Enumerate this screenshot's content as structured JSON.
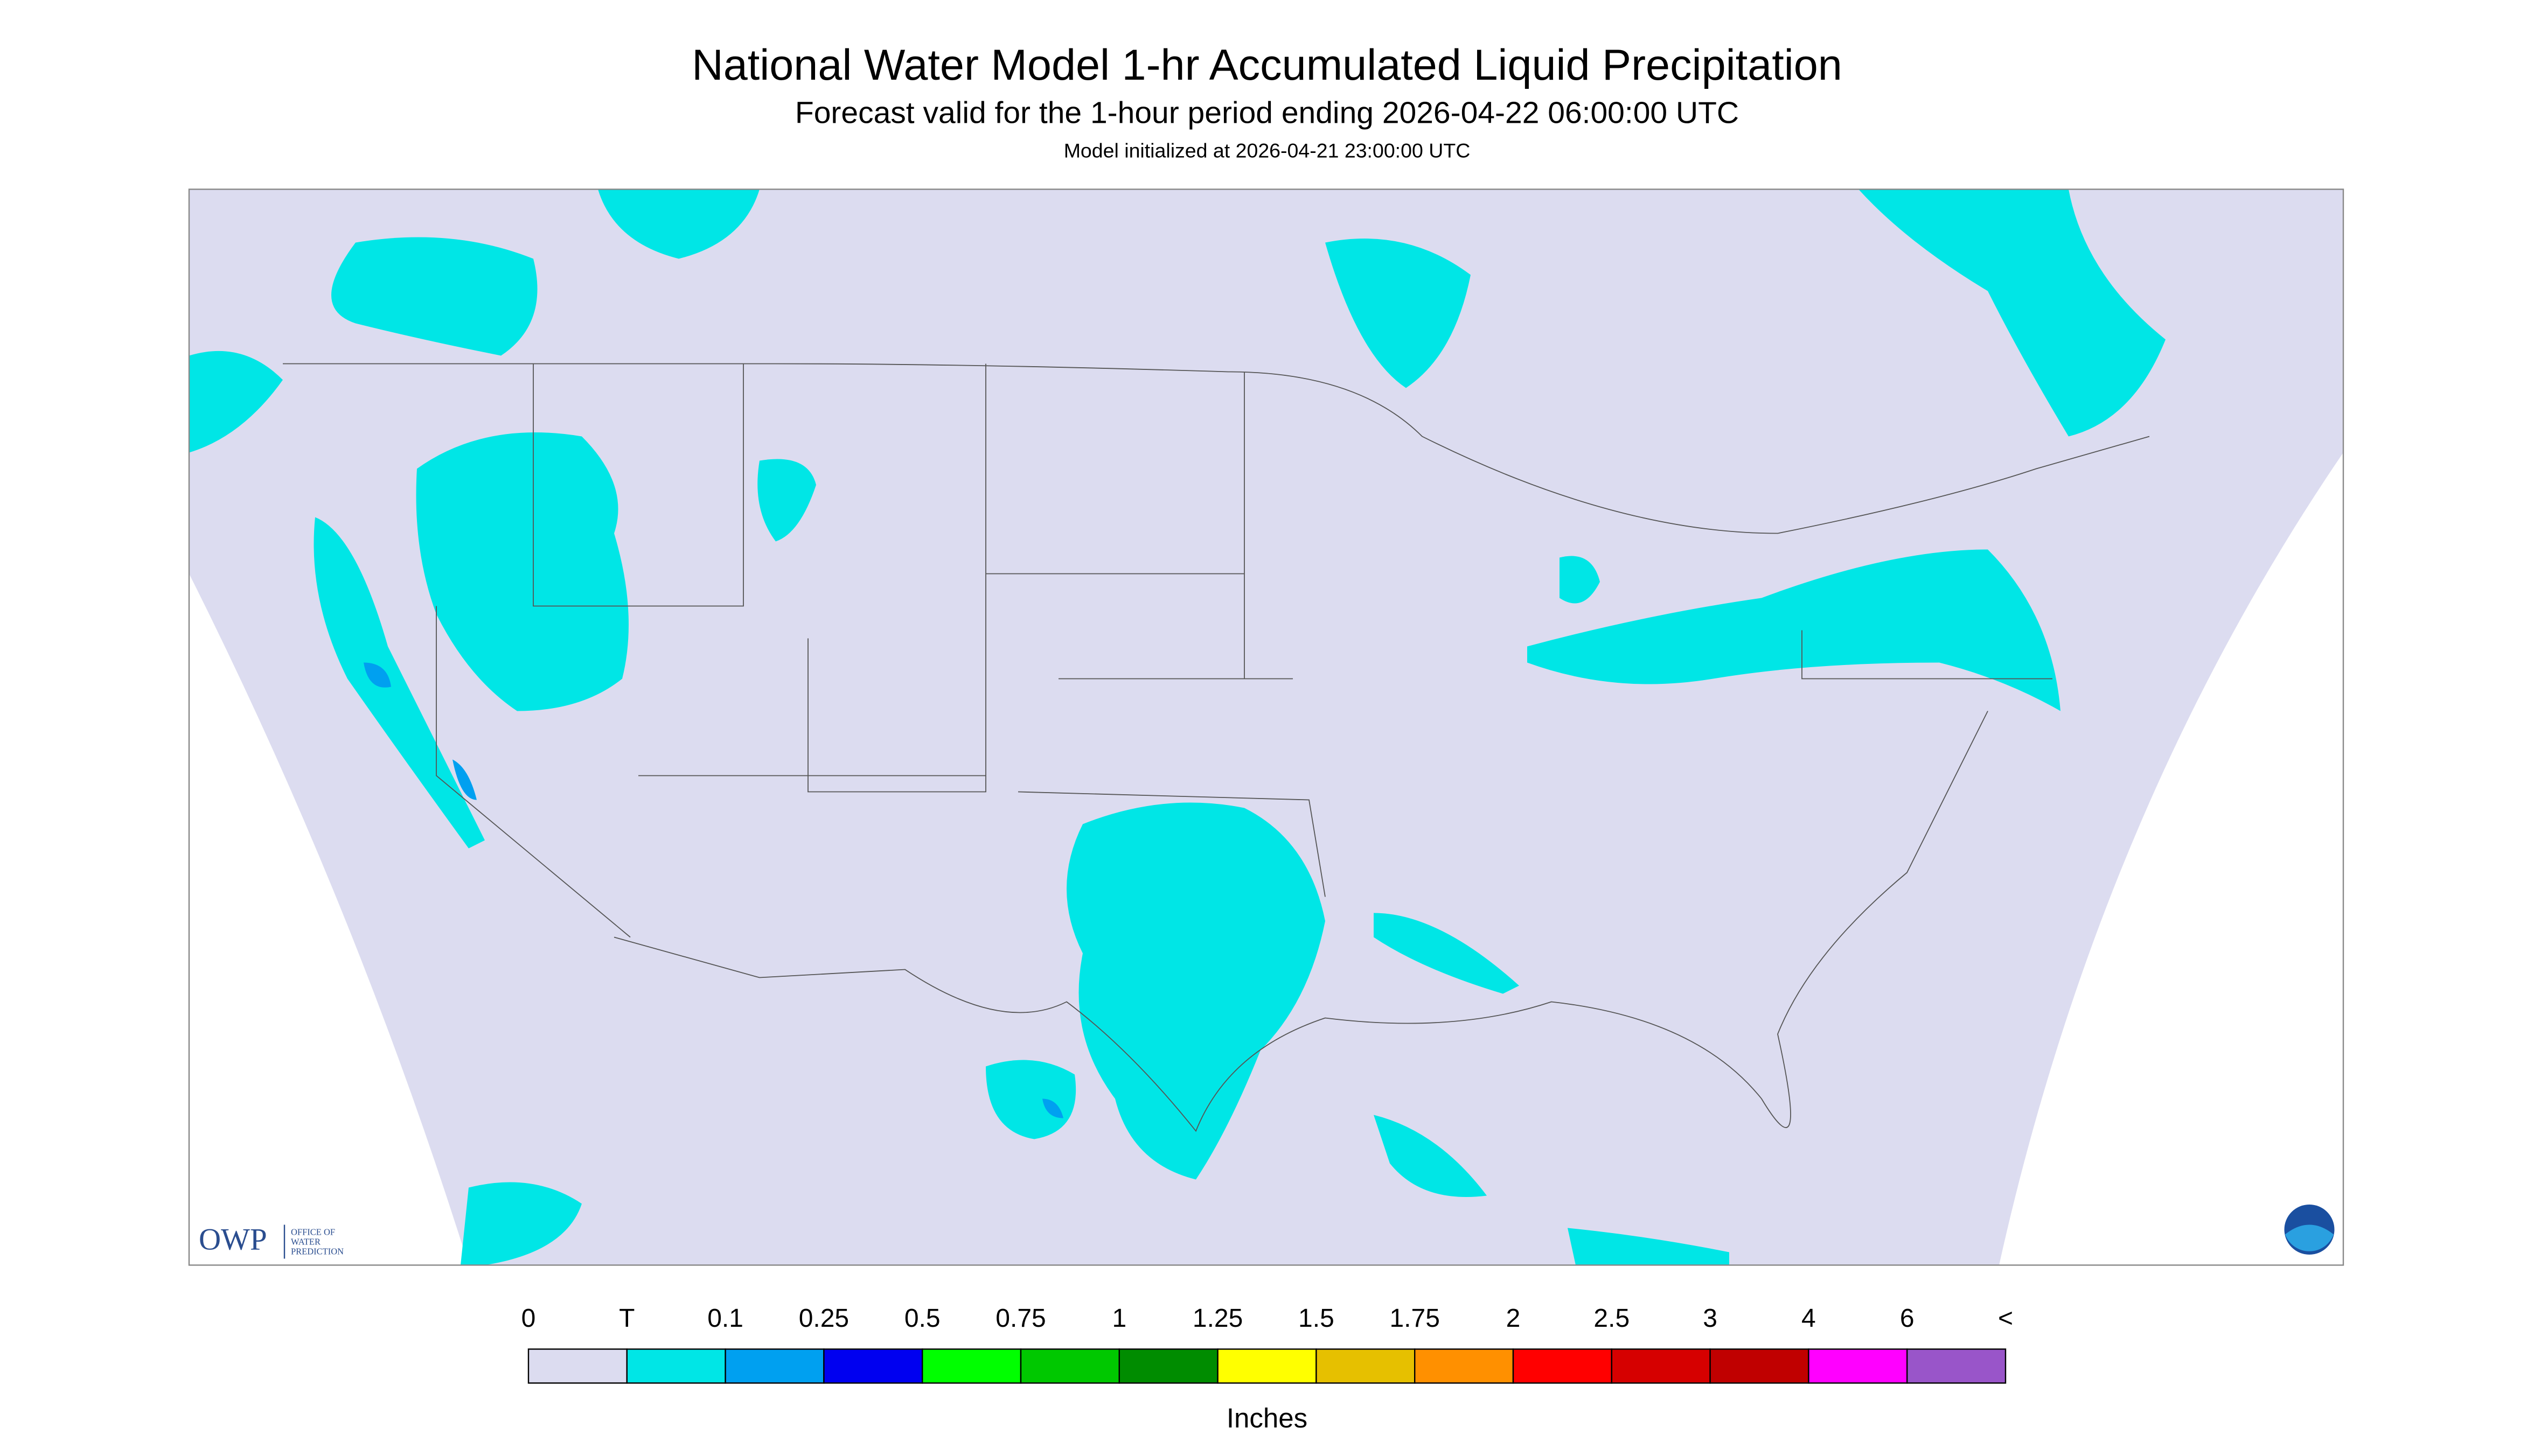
{
  "header": {
    "title": "National Water Model 1-hr Accumulated Liquid Precipitation",
    "subtitle": "Forecast valid for the 1-hour period ending 2026-04-22 06:00:00 UTC",
    "init": "Model initialized at 2026-04-21 23:00:00 UTC"
  },
  "legend": {
    "labels": [
      "0",
      "T",
      "0.1",
      "0.25",
      "0.5",
      "0.75",
      "1",
      "1.25",
      "1.5",
      "1.75",
      "2",
      "2.5",
      "3",
      "4",
      "6",
      "<"
    ],
    "colors": [
      "#dcdcf0",
      "#00e6e6",
      "#00a0f0",
      "#0000f0",
      "#00ff00",
      "#00c800",
      "#008c00",
      "#ffff00",
      "#e6c000",
      "#ff9000",
      "#ff0000",
      "#d60000",
      "#c00000",
      "#ff00ff",
      "#9955c9"
    ],
    "unit": "Inches"
  },
  "logo": {
    "acronym": "OWP",
    "lines": [
      "OFFICE OF",
      "WATER",
      "PREDICTION"
    ]
  }
}
